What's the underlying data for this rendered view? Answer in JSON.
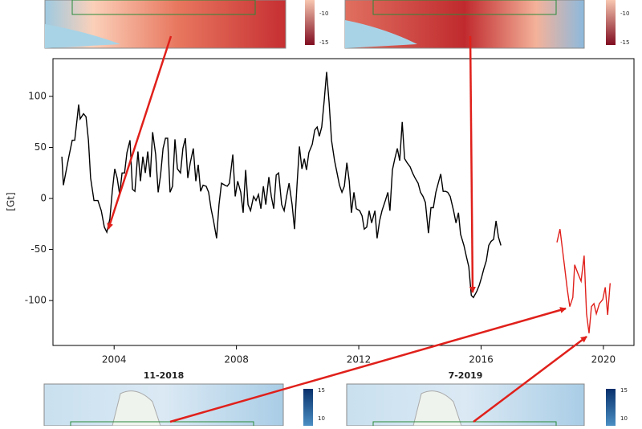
{
  "chart_data": {
    "type": "line",
    "y_label": "[Gt]",
    "xlim": [
      2002,
      2021
    ],
    "ylim": [
      -144,
      137
    ],
    "xticks": [
      2004,
      2008,
      2012,
      2016,
      2020
    ],
    "yticks": [
      -100,
      -50,
      0,
      50,
      100
    ],
    "series": [
      {
        "color": "#000000",
        "x": [
          2002.29,
          2002.34,
          2002.52,
          2002.63,
          2002.71,
          2002.79,
          2002.84,
          2002.89,
          2003.0,
          2003.08,
          2003.16,
          2003.23,
          2003.34,
          2003.47,
          2003.58,
          2003.68,
          2003.76,
          2003.86,
          2003.94,
          2004.02,
          2004.1,
          2004.18,
          2004.26,
          2004.34,
          2004.42,
          2004.52,
          2004.6,
          2004.68,
          2004.78,
          2004.86,
          2004.94,
          2005.02,
          2005.1,
          2005.18,
          2005.26,
          2005.36,
          2005.44,
          2005.52,
          2005.6,
          2005.68,
          2005.75,
          2005.83,
          2005.91,
          2005.99,
          2006.07,
          2006.17,
          2006.25,
          2006.33,
          2006.41,
          2006.49,
          2006.59,
          2006.67,
          2006.75,
          2006.83,
          2006.91,
          2007.01,
          2007.09,
          2007.17,
          2007.25,
          2007.35,
          2007.43,
          2007.51,
          2007.62,
          2007.7,
          2007.77,
          2007.88,
          2007.96,
          2008.04,
          2008.14,
          2008.22,
          2008.3,
          2008.38,
          2008.46,
          2008.56,
          2008.64,
          2008.72,
          2008.8,
          2008.88,
          2008.96,
          2009.06,
          2009.14,
          2009.22,
          2009.3,
          2009.38,
          2009.48,
          2009.56,
          2009.64,
          2009.72,
          2009.82,
          2009.9,
          2009.98,
          2010.06,
          2010.14,
          2010.22,
          2010.29,
          2010.37,
          2010.48,
          2010.56,
          2010.64,
          2010.71,
          2010.79,
          2010.87,
          2010.95,
          2011.03,
          2011.11,
          2011.21,
          2011.29,
          2011.37,
          2011.45,
          2011.53,
          2011.61,
          2011.69,
          2011.76,
          2011.84,
          2011.92,
          2012.03,
          2012.11,
          2012.18,
          2012.26,
          2012.34,
          2012.42,
          2012.53,
          2012.6,
          2012.68,
          2012.76,
          2012.87,
          2012.95,
          2013.02,
          2013.1,
          2013.18,
          2013.26,
          2013.34,
          2013.42,
          2013.5,
          2013.58,
          2013.68,
          2013.76,
          2013.84,
          2013.94,
          2014.02,
          2014.1,
          2014.18,
          2014.28,
          2014.36,
          2014.44,
          2014.52,
          2014.6,
          2014.68,
          2014.76,
          2014.84,
          2014.91,
          2014.99,
          2015.1,
          2015.18,
          2015.26,
          2015.33,
          2015.44,
          2015.52,
          2015.6,
          2015.68,
          2015.75,
          2015.86,
          2015.94,
          2016.02,
          2016.09,
          2016.17,
          2016.25,
          2016.33,
          2016.41,
          2016.49,
          2016.57,
          2016.65
        ],
        "values": [
          41,
          13,
          41,
          57,
          57,
          78,
          92,
          78,
          83,
          80,
          57,
          20,
          -2,
          -2,
          -12,
          -28,
          -33,
          -20,
          7,
          29,
          20,
          4,
          25,
          25,
          45,
          57,
          9,
          7,
          46,
          17,
          41,
          25,
          46,
          21,
          65,
          43,
          6,
          23,
          49,
          59,
          59,
          6,
          12,
          58,
          29,
          25,
          49,
          59,
          20,
          35,
          49,
          17,
          33,
          7,
          13,
          12,
          6,
          -10,
          -22,
          -39,
          -6,
          15,
          13,
          12,
          15,
          43,
          2,
          17,
          6,
          -14,
          28,
          -6,
          -12,
          2,
          -2,
          4,
          -10,
          12,
          -6,
          21,
          2,
          -10,
          23,
          25,
          -6,
          -12,
          2,
          15,
          -6,
          -30,
          13,
          51,
          29,
          39,
          28,
          45,
          53,
          67,
          70,
          61,
          70,
          96,
          124,
          94,
          57,
          37,
          25,
          13,
          6,
          12,
          35,
          17,
          -14,
          6,
          -10,
          -12,
          -17,
          -30,
          -28,
          -12,
          -24,
          -12,
          -39,
          -22,
          -12,
          -2,
          6,
          -12,
          28,
          39,
          49,
          37,
          75,
          39,
          35,
          31,
          25,
          20,
          15,
          6,
          2,
          -4,
          -34,
          -9,
          -9,
          6,
          15,
          24,
          7,
          7,
          6,
          2,
          -12,
          -24,
          -14,
          -35,
          -46,
          -57,
          -67,
          -95,
          -97,
          -91,
          -85,
          -77,
          -69,
          -61,
          -46,
          -42,
          -40,
          -22,
          -38,
          -46
        ]
      },
      {
        "color": "#e0201b",
        "x": [
          2018.48,
          2018.58,
          2018.72,
          2018.82,
          2018.9,
          2019.0,
          2019.06,
          2019.16,
          2019.27,
          2019.37,
          2019.45,
          2019.53,
          2019.61,
          2019.69,
          2019.77,
          2019.87,
          2019.98,
          2020.06,
          2020.14,
          2020.22
        ],
        "values": [
          -43,
          -30,
          -64,
          -89,
          -106,
          -97,
          -65,
          -73,
          -81,
          -56,
          -113,
          -132,
          -106,
          -103,
          -113,
          -103,
          -99,
          -87,
          -114,
          -83
        ]
      }
    ]
  },
  "insets": [
    {
      "colorbar_ticks": [
        -10,
        -15
      ]
    },
    {
      "colorbar_ticks": [
        -10,
        -15
      ]
    },
    {
      "title": "11-2018",
      "colorbar_ticks": [
        15,
        10
      ]
    },
    {
      "title": "7-2019",
      "colorbar_ticks": [
        15,
        10
      ]
    }
  ]
}
